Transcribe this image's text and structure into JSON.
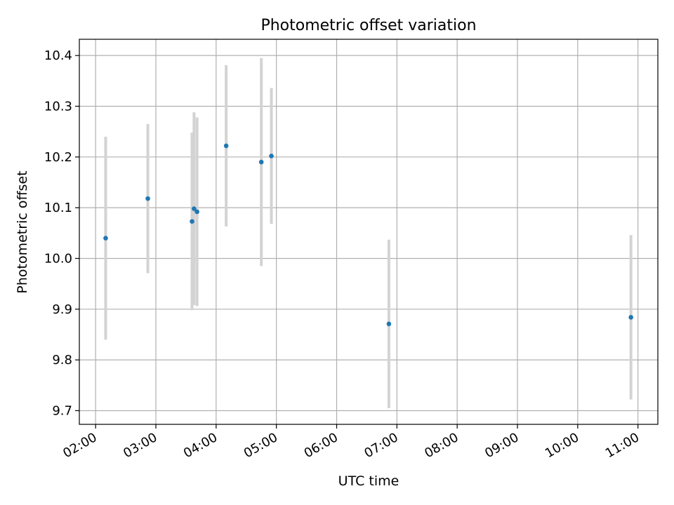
{
  "chart_data": {
    "type": "scatter",
    "title": "Photometric offset variation",
    "xlabel": "UTC time",
    "ylabel": "Photometric offset",
    "x_tick_labels": [
      "02:00",
      "03:00",
      "04:00",
      "05:00",
      "06:00",
      "07:00",
      "08:00",
      "09:00",
      "10:00",
      "11:00"
    ],
    "y_tick_labels": [
      "9.7",
      "9.8",
      "9.9",
      "10.0",
      "10.1",
      "10.2",
      "10.3",
      "10.4"
    ],
    "x_ticks_hours": [
      2,
      3,
      4,
      5,
      6,
      7,
      8,
      9,
      10,
      11
    ],
    "y_ticks": [
      9.7,
      9.8,
      9.9,
      10.0,
      10.1,
      10.2,
      10.3,
      10.4
    ],
    "xlim_hours": [
      1.73,
      11.33
    ],
    "ylim": [
      9.673,
      10.432
    ],
    "grid": true,
    "series": [
      {
        "color": "#1f77b4",
        "errorbar_color": "#d3d3d3",
        "points": [
          {
            "x": "02:10",
            "y": 10.04,
            "yerr": 0.2
          },
          {
            "x": "02:52",
            "y": 10.118,
            "yerr": 0.147
          },
          {
            "x": "03:36",
            "y": 10.073,
            "yerr": 0.175
          },
          {
            "x": "03:38",
            "y": 10.098,
            "yerr": 0.19
          },
          {
            "x": "03:41",
            "y": 10.092,
            "yerr": 0.186
          },
          {
            "x": "04:10",
            "y": 10.222,
            "yerr": 0.159
          },
          {
            "x": "04:45",
            "y": 10.19,
            "yerr": 0.205
          },
          {
            "x": "04:55",
            "y": 10.202,
            "yerr": 0.134
          },
          {
            "x": "06:52",
            "y": 9.871,
            "yerr": 0.166
          },
          {
            "x": "10:53",
            "y": 9.884,
            "yerr": 0.162
          }
        ]
      }
    ]
  }
}
